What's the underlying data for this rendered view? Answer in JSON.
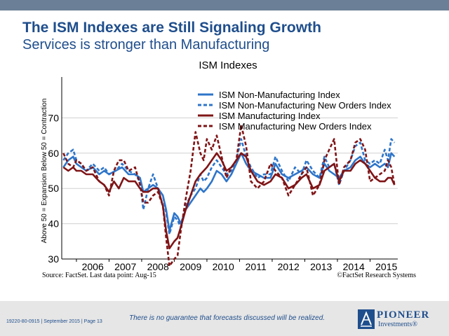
{
  "header": {
    "title": "The ISM Indexes are Still Signaling Growth",
    "subtitle": "Services is stronger than Manufacturing"
  },
  "footer": {
    "doc_id": "19220-80-0915 | September 2015 | Page 13",
    "disclaimer": "There is no guarantee that forecasts discussed will be realized.",
    "logo_line1": "PIONEER",
    "logo_line2": "Investments®"
  },
  "colors": {
    "blue": "#2e75c9",
    "darkred": "#7f1416",
    "brand": "#1f4e8c",
    "band": "#e6e6e6"
  },
  "chart_data": {
    "type": "line",
    "title": "ISM Indexes",
    "ylabel": "Above 50 = Expansion   Below 50 = Contraction",
    "ylim": [
      30,
      80
    ],
    "xlim": [
      2005.55,
      2015.85
    ],
    "yticks": [
      30,
      40,
      50,
      60,
      70
    ],
    "xtick_labels": [
      "2006",
      "2007",
      "2008",
      "2009",
      "2010",
      "2011",
      "2012",
      "2013",
      "2014",
      "2015"
    ],
    "grid": true,
    "legend_position": "top-right",
    "source": "Source: FactSet. Last data point: Aug-15",
    "credit": "©FactSet Research Systems",
    "series": [
      {
        "name": "ISM  Non-Manufacturing Index",
        "color": "#2e75c9",
        "dashed": false,
        "points": [
          [
            2005.6,
            56
          ],
          [
            2005.75,
            58
          ],
          [
            2005.9,
            59
          ],
          [
            2006.0,
            57
          ],
          [
            2006.15,
            56
          ],
          [
            2006.3,
            55
          ],
          [
            2006.5,
            56
          ],
          [
            2006.7,
            54
          ],
          [
            2006.85,
            55
          ],
          [
            2007.0,
            54
          ],
          [
            2007.2,
            55
          ],
          [
            2007.4,
            56
          ],
          [
            2007.6,
            54
          ],
          [
            2007.8,
            54
          ],
          [
            2007.95,
            53
          ],
          [
            2008.05,
            49
          ],
          [
            2008.2,
            50
          ],
          [
            2008.35,
            51
          ],
          [
            2008.5,
            50
          ],
          [
            2008.65,
            48
          ],
          [
            2008.75,
            44
          ],
          [
            2008.85,
            38
          ],
          [
            2009.0,
            43
          ],
          [
            2009.1,
            42
          ],
          [
            2009.2,
            40
          ],
          [
            2009.35,
            44
          ],
          [
            2009.5,
            46
          ],
          [
            2009.65,
            48
          ],
          [
            2009.8,
            50
          ],
          [
            2009.9,
            49
          ],
          [
            2010.0,
            50
          ],
          [
            2010.15,
            52
          ],
          [
            2010.3,
            55
          ],
          [
            2010.45,
            54
          ],
          [
            2010.6,
            52
          ],
          [
            2010.75,
            54
          ],
          [
            2010.9,
            57
          ],
          [
            2011.05,
            60
          ],
          [
            2011.2,
            57
          ],
          [
            2011.35,
            55
          ],
          [
            2011.55,
            54
          ],
          [
            2011.75,
            53
          ],
          [
            2011.95,
            53
          ],
          [
            2012.1,
            57
          ],
          [
            2012.3,
            54
          ],
          [
            2012.5,
            53
          ],
          [
            2012.7,
            54
          ],
          [
            2012.9,
            55
          ],
          [
            2013.05,
            56
          ],
          [
            2013.25,
            54
          ],
          [
            2013.45,
            53
          ],
          [
            2013.6,
            57
          ],
          [
            2013.75,
            55
          ],
          [
            2013.9,
            54
          ],
          [
            2014.05,
            53
          ],
          [
            2014.2,
            55
          ],
          [
            2014.4,
            56
          ],
          [
            2014.55,
            58
          ],
          [
            2014.7,
            59
          ],
          [
            2014.85,
            57
          ],
          [
            2015.0,
            56
          ],
          [
            2015.15,
            57
          ],
          [
            2015.3,
            56
          ],
          [
            2015.45,
            57
          ],
          [
            2015.55,
            56
          ],
          [
            2015.65,
            60
          ],
          [
            2015.75,
            59
          ]
        ]
      },
      {
        "name": "ISM Non-Manufacturing New Orders Index",
        "color": "#2e75c9",
        "dashed": true,
        "points": [
          [
            2005.6,
            58
          ],
          [
            2005.75,
            60
          ],
          [
            2005.9,
            61
          ],
          [
            2006.0,
            58
          ],
          [
            2006.15,
            57
          ],
          [
            2006.3,
            55
          ],
          [
            2006.5,
            57
          ],
          [
            2006.7,
            55
          ],
          [
            2006.85,
            56
          ],
          [
            2007.0,
            54
          ],
          [
            2007.2,
            55
          ],
          [
            2007.4,
            57
          ],
          [
            2007.6,
            55
          ],
          [
            2007.8,
            54
          ],
          [
            2007.95,
            52
          ],
          [
            2008.05,
            44
          ],
          [
            2008.2,
            50
          ],
          [
            2008.35,
            54
          ],
          [
            2008.5,
            50
          ],
          [
            2008.65,
            48
          ],
          [
            2008.75,
            43
          ],
          [
            2008.85,
            37
          ],
          [
            2009.0,
            42
          ],
          [
            2009.1,
            41
          ],
          [
            2009.2,
            39
          ],
          [
            2009.35,
            45
          ],
          [
            2009.5,
            48
          ],
          [
            2009.65,
            50
          ],
          [
            2009.8,
            54
          ],
          [
            2009.9,
            52
          ],
          [
            2010.0,
            53
          ],
          [
            2010.15,
            56
          ],
          [
            2010.3,
            58
          ],
          [
            2010.45,
            56
          ],
          [
            2010.6,
            54
          ],
          [
            2010.75,
            55
          ],
          [
            2010.9,
            58
          ],
          [
            2011.05,
            64
          ],
          [
            2011.2,
            59
          ],
          [
            2011.35,
            56
          ],
          [
            2011.55,
            53
          ],
          [
            2011.75,
            54
          ],
          [
            2011.95,
            54
          ],
          [
            2012.1,
            59
          ],
          [
            2012.3,
            55
          ],
          [
            2012.5,
            52
          ],
          [
            2012.7,
            56
          ],
          [
            2012.9,
            54
          ],
          [
            2013.05,
            58
          ],
          [
            2013.25,
            55
          ],
          [
            2013.45,
            53
          ],
          [
            2013.6,
            59
          ],
          [
            2013.75,
            56
          ],
          [
            2013.9,
            57
          ],
          [
            2014.05,
            51
          ],
          [
            2014.2,
            55
          ],
          [
            2014.4,
            58
          ],
          [
            2014.55,
            62
          ],
          [
            2014.7,
            63
          ],
          [
            2014.85,
            58
          ],
          [
            2015.0,
            57
          ],
          [
            2015.15,
            58
          ],
          [
            2015.3,
            57
          ],
          [
            2015.45,
            61
          ],
          [
            2015.55,
            58
          ],
          [
            2015.65,
            64
          ],
          [
            2015.75,
            63
          ]
        ]
      },
      {
        "name": "ISM Manufacturing Index",
        "color": "#7f1416",
        "dashed": false,
        "points": [
          [
            2005.6,
            56
          ],
          [
            2005.75,
            55
          ],
          [
            2005.9,
            56
          ],
          [
            2006.0,
            55
          ],
          [
            2006.15,
            55
          ],
          [
            2006.3,
            54
          ],
          [
            2006.5,
            54
          ],
          [
            2006.7,
            52
          ],
          [
            2006.85,
            51
          ],
          [
            2007.0,
            49
          ],
          [
            2007.15,
            52
          ],
          [
            2007.3,
            50
          ],
          [
            2007.45,
            53
          ],
          [
            2007.6,
            52
          ],
          [
            2007.8,
            52
          ],
          [
            2007.95,
            50
          ],
          [
            2008.05,
            49
          ],
          [
            2008.2,
            49
          ],
          [
            2008.35,
            50
          ],
          [
            2008.5,
            50
          ],
          [
            2008.65,
            45
          ],
          [
            2008.75,
            38
          ],
          [
            2008.85,
            33
          ],
          [
            2009.0,
            35
          ],
          [
            2009.1,
            36
          ],
          [
            2009.2,
            39
          ],
          [
            2009.35,
            44
          ],
          [
            2009.5,
            48
          ],
          [
            2009.65,
            52
          ],
          [
            2009.8,
            54
          ],
          [
            2009.9,
            55
          ],
          [
            2010.0,
            56
          ],
          [
            2010.15,
            58
          ],
          [
            2010.3,
            60
          ],
          [
            2010.45,
            58
          ],
          [
            2010.6,
            55
          ],
          [
            2010.75,
            56
          ],
          [
            2010.9,
            58
          ],
          [
            2011.05,
            60
          ],
          [
            2011.2,
            59
          ],
          [
            2011.35,
            55
          ],
          [
            2011.55,
            52
          ],
          [
            2011.75,
            51
          ],
          [
            2011.95,
            52
          ],
          [
            2012.1,
            54
          ],
          [
            2012.3,
            53
          ],
          [
            2012.5,
            50
          ],
          [
            2012.7,
            51
          ],
          [
            2012.9,
            53
          ],
          [
            2013.05,
            54
          ],
          [
            2013.25,
            50
          ],
          [
            2013.45,
            51
          ],
          [
            2013.6,
            55
          ],
          [
            2013.75,
            56
          ],
          [
            2013.9,
            57
          ],
          [
            2014.05,
            52
          ],
          [
            2014.2,
            55
          ],
          [
            2014.4,
            55
          ],
          [
            2014.55,
            57
          ],
          [
            2014.7,
            58
          ],
          [
            2014.85,
            57
          ],
          [
            2015.0,
            55
          ],
          [
            2015.15,
            53
          ],
          [
            2015.3,
            52
          ],
          [
            2015.45,
            52
          ],
          [
            2015.55,
            53
          ],
          [
            2015.65,
            53
          ],
          [
            2015.75,
            51
          ]
        ]
      },
      {
        "name": "ISM Manufacturing New Orders Index",
        "color": "#7f1416",
        "dashed": true,
        "points": [
          [
            2005.6,
            60
          ],
          [
            2005.75,
            57
          ],
          [
            2005.9,
            56
          ],
          [
            2006.0,
            58
          ],
          [
            2006.15,
            57
          ],
          [
            2006.3,
            55
          ],
          [
            2006.5,
            56
          ],
          [
            2006.7,
            52
          ],
          [
            2006.85,
            51
          ],
          [
            2007.0,
            48
          ],
          [
            2007.15,
            55
          ],
          [
            2007.3,
            58
          ],
          [
            2007.45,
            58
          ],
          [
            2007.6,
            55
          ],
          [
            2007.8,
            56
          ],
          [
            2007.95,
            51
          ],
          [
            2008.05,
            46
          ],
          [
            2008.2,
            46
          ],
          [
            2008.35,
            48
          ],
          [
            2008.5,
            49
          ],
          [
            2008.65,
            45
          ],
          [
            2008.75,
            36
          ],
          [
            2008.85,
            28
          ],
          [
            2009.0,
            30
          ],
          [
            2009.1,
            31
          ],
          [
            2009.2,
            38
          ],
          [
            2009.35,
            47
          ],
          [
            2009.5,
            55
          ],
          [
            2009.65,
            66
          ],
          [
            2009.8,
            60
          ],
          [
            2009.9,
            58
          ],
          [
            2010.0,
            64
          ],
          [
            2010.15,
            61
          ],
          [
            2010.3,
            65
          ],
          [
            2010.45,
            59
          ],
          [
            2010.6,
            53
          ],
          [
            2010.75,
            56
          ],
          [
            2010.9,
            58
          ],
          [
            2011.05,
            68
          ],
          [
            2011.2,
            62
          ],
          [
            2011.35,
            52
          ],
          [
            2011.55,
            50
          ],
          [
            2011.75,
            52
          ],
          [
            2011.95,
            57
          ],
          [
            2012.1,
            55
          ],
          [
            2012.3,
            53
          ],
          [
            2012.5,
            48
          ],
          [
            2012.7,
            51
          ],
          [
            2012.9,
            54
          ],
          [
            2013.05,
            56
          ],
          [
            2013.25,
            48
          ],
          [
            2013.45,
            51
          ],
          [
            2013.6,
            58
          ],
          [
            2013.75,
            61
          ],
          [
            2013.9,
            64
          ],
          [
            2014.05,
            51
          ],
          [
            2014.2,
            56
          ],
          [
            2014.4,
            58
          ],
          [
            2014.55,
            63
          ],
          [
            2014.7,
            64
          ],
          [
            2014.85,
            61
          ],
          [
            2015.0,
            52
          ],
          [
            2015.15,
            53
          ],
          [
            2015.3,
            54
          ],
          [
            2015.45,
            55
          ],
          [
            2015.55,
            58
          ],
          [
            2015.65,
            56
          ],
          [
            2015.75,
            51
          ]
        ]
      }
    ]
  }
}
